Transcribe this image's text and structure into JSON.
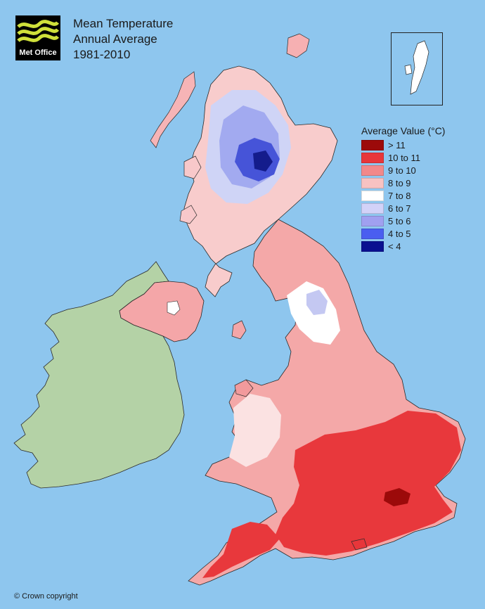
{
  "logo": {
    "text": "Met Office",
    "icon": "met-office-wave-logo"
  },
  "title": {
    "line1": "Mean Temperature",
    "line2": "Annual Average",
    "line3": "1981-2010"
  },
  "legend": {
    "title": "Average Value (°C)",
    "items": [
      {
        "label": "> 11",
        "color": "#9c0a0a"
      },
      {
        "label": "10 to 11",
        "color": "#e8363a"
      },
      {
        "label": "9 to 10",
        "color": "#f2888a"
      },
      {
        "label": "8 to 9",
        "color": "#f8c2c2"
      },
      {
        "label": "7 to 8",
        "color": "#ffffff"
      },
      {
        "label": "6 to 7",
        "color": "#d2d2f8"
      },
      {
        "label": "5 to 6",
        "color": "#a0a0f0"
      },
      {
        "label": "4 to 5",
        "color": "#4a5ef0"
      },
      {
        "label": "< 4",
        "color": "#0a1090"
      }
    ]
  },
  "colors": {
    "sea": "#8ec6ee",
    "ireland": "#b4d2a6"
  },
  "copyright": "© Crown copyright"
}
